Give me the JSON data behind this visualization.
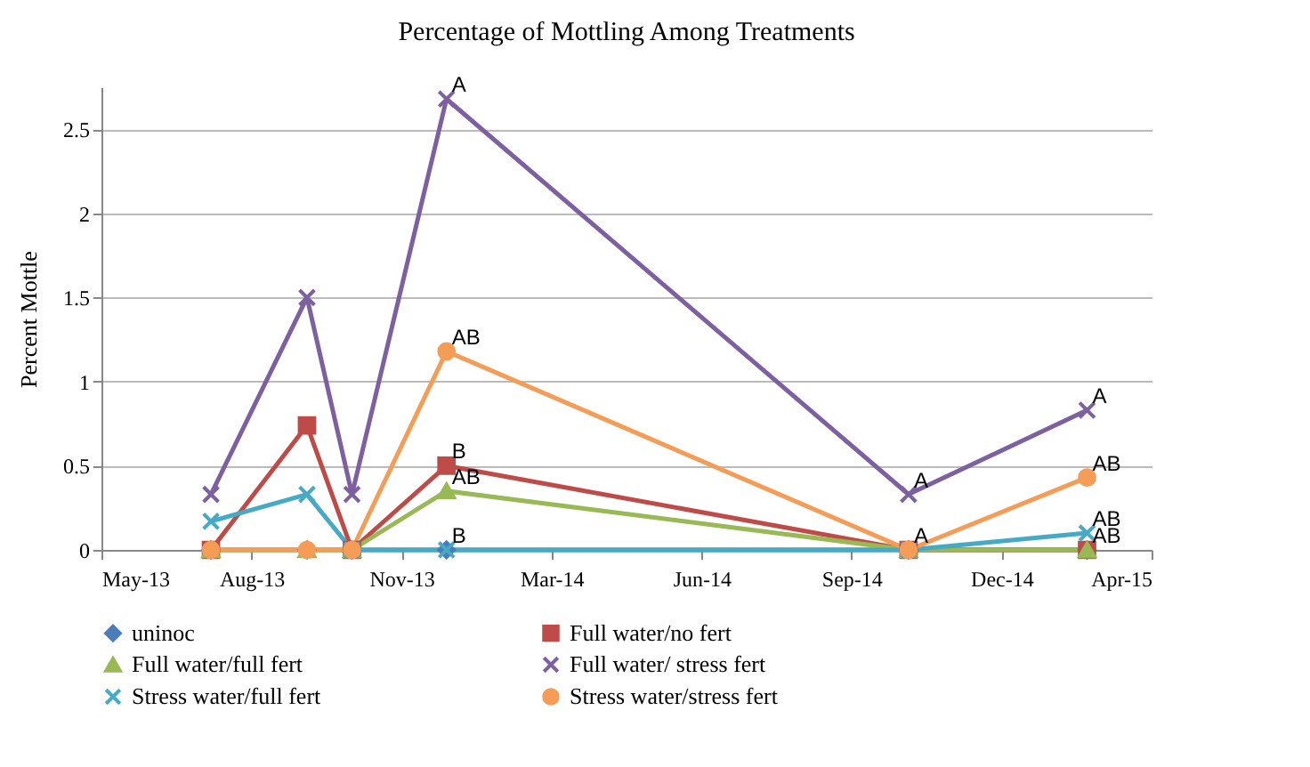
{
  "chart_data": {
    "type": "line",
    "title": "Percentage of Mottling Among Treatments",
    "ylabel": "Percent Mottle",
    "x": [
      "2013-07-18",
      "2013-09-20",
      "2013-10-20",
      "2013-12-22",
      "2014-10-26",
      "2015-02-22"
    ],
    "series": [
      {
        "name": "uninoc",
        "color": "#4a7ebb",
        "marker": "diamond",
        "values": [
          0,
          0,
          0,
          0,
          0,
          0
        ]
      },
      {
        "name": "Full water/no fert",
        "color": "#be4b48",
        "marker": "square",
        "values": [
          0,
          0.74,
          0,
          0.5,
          0,
          0
        ]
      },
      {
        "name": "Full water/full fert",
        "color": "#98b954",
        "marker": "triangle",
        "values": [
          0,
          0,
          0,
          0.35,
          0,
          0
        ]
      },
      {
        "name": "Full water/ stress fert",
        "color": "#7d60a0",
        "marker": "cross",
        "values": [
          0.33,
          1.5,
          0.33,
          2.68,
          0.33,
          0.83
        ]
      },
      {
        "name": "Stress water/full fert",
        "color": "#46aac5",
        "marker": "cross",
        "values": [
          0.17,
          0.33,
          0,
          0,
          0,
          0.1
        ]
      },
      {
        "name": "Stress water/stress fert",
        "color": "#f59d56",
        "marker": "circle",
        "values": [
          0,
          0,
          0,
          1.18,
          0,
          0.43
        ]
      }
    ],
    "xlim": [
      "2013-05-06",
      "2015-04-06"
    ],
    "xticks": [
      {
        "value": "2013-05-06",
        "label": "May-13"
      },
      {
        "value": "2013-08-14",
        "label": "Aug-13"
      },
      {
        "value": "2013-11-22",
        "label": "Nov-13"
      },
      {
        "value": "2014-03-02",
        "label": "Mar-14"
      },
      {
        "value": "2014-06-10",
        "label": "Jun-14"
      },
      {
        "value": "2014-09-18",
        "label": "Sep-14"
      },
      {
        "value": "2014-12-27",
        "label": "Dec-14"
      },
      {
        "value": "2015-04-06",
        "label": "Apr-15"
      }
    ],
    "ylim": [
      0,
      2.75
    ],
    "yticks": [
      0,
      0.5,
      1,
      1.5,
      2,
      2.5
    ],
    "grid": "y",
    "legend": "bottom",
    "annotations": [
      {
        "text": "A",
        "x": "2013-12-22",
        "y": 2.68
      },
      {
        "text": "AB",
        "x": "2013-12-22",
        "y": 1.18
      },
      {
        "text": "B",
        "x": "2013-12-22",
        "y": 0.5
      },
      {
        "text": "AB",
        "x": "2013-12-22",
        "y": 0.35
      },
      {
        "text": "B",
        "x": "2013-12-22",
        "y": 0
      },
      {
        "text": "A",
        "x": "2014-10-26",
        "y": 0.33
      },
      {
        "text": "A",
        "x": "2014-10-26",
        "y": 0
      },
      {
        "text": "A",
        "x": "2015-02-22",
        "y": 0.83
      },
      {
        "text": "AB",
        "x": "2015-02-22",
        "y": 0.43
      },
      {
        "text": "AB",
        "x": "2015-02-22",
        "y": 0.1
      },
      {
        "text": "AB",
        "x": "2015-02-22",
        "y": 0
      }
    ]
  }
}
